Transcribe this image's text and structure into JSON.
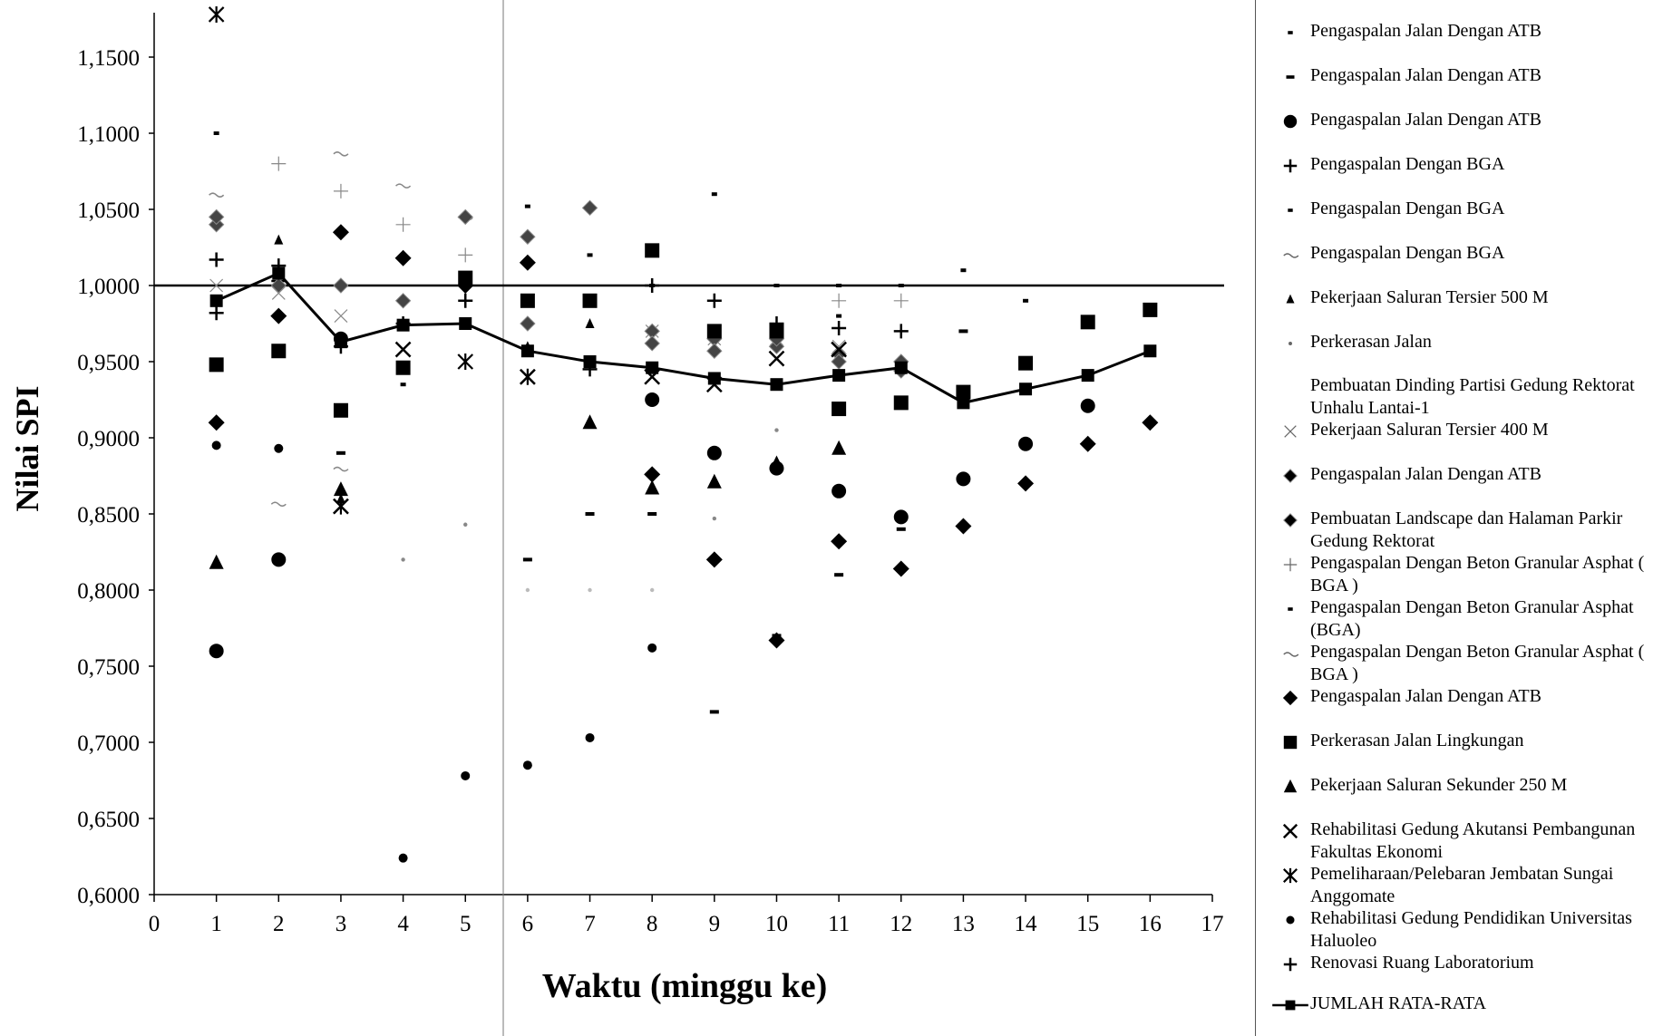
{
  "chart_data": {
    "type": "scatter",
    "title": "",
    "xlabel": "Waktu (minggu ke)",
    "ylabel": "Nilai SPI",
    "xlim": [
      0,
      17
    ],
    "ylim": [
      0.6,
      1.18
    ],
    "xticks": [
      "0",
      "1",
      "2",
      "3",
      "4",
      "5",
      "6",
      "7",
      "8",
      "9",
      "10",
      "11",
      "12",
      "13",
      "14",
      "15",
      "16",
      "17"
    ],
    "yticks": [
      "0,6000",
      "0,6500",
      "0,7000",
      "0,7500",
      "0,8000",
      "0,8500",
      "0,9000",
      "0,9500",
      "1,0000",
      "1,0500",
      "1,1000",
      "1,1500"
    ],
    "ytick_values": [
      0.6,
      0.65,
      0.7,
      0.75,
      0.8,
      0.85,
      0.9,
      0.95,
      1.0,
      1.05,
      1.1,
      1.15
    ],
    "reference_line": 1.0,
    "grid": false,
    "legend_position": "right",
    "series": [
      {
        "name": "Pengaspalan Jalan Dengan ATB",
        "marker": "dash-small",
        "color": "#000000",
        "points": [
          [
            1,
            1.1
          ],
          [
            2,
            1.0
          ],
          [
            7,
            1.02
          ],
          [
            9,
            1.06
          ],
          [
            10,
            1.0
          ],
          [
            11,
            1.0
          ],
          [
            12,
            1.0
          ],
          [
            13,
            1.01
          ],
          [
            14,
            0.99
          ]
        ]
      },
      {
        "name": "Pengaspalan Jalan Dengan ATB",
        "marker": "dash",
        "color": "#000000",
        "points": [
          [
            3,
            0.89
          ],
          [
            6,
            0.82
          ],
          [
            7,
            0.85
          ],
          [
            8,
            0.85
          ],
          [
            9,
            0.72
          ],
          [
            10,
            0.77
          ],
          [
            11,
            0.81
          ],
          [
            12,
            0.84
          ],
          [
            13,
            0.97
          ]
        ]
      },
      {
        "name": "Pengaspalan Jalan Dengan ATB",
        "marker": "circle",
        "color": "#000000",
        "points": [
          [
            1,
            0.76
          ],
          [
            2,
            0.82
          ],
          [
            3,
            0.965
          ],
          [
            8,
            0.925
          ],
          [
            9,
            0.89
          ],
          [
            10,
            0.88
          ],
          [
            11,
            0.865
          ],
          [
            12,
            0.848
          ],
          [
            13,
            0.873
          ],
          [
            14,
            0.896
          ],
          [
            15,
            0.921
          ]
        ]
      },
      {
        "name": "Pengaspalan Dengan BGA",
        "marker": "plus",
        "color": "#000000",
        "points": [
          [
            1,
            1.017
          ],
          [
            2,
            1.003
          ],
          [
            8,
            1.0
          ],
          [
            9,
            0.99
          ],
          [
            10,
            0.975
          ],
          [
            11,
            0.972
          ],
          [
            12,
            0.97
          ]
        ]
      },
      {
        "name": "Pengaspalan Dengan BGA",
        "marker": "dash-small",
        "color": "#000000",
        "points": [
          [
            6,
            1.052
          ],
          [
            8,
            1.0
          ]
        ]
      },
      {
        "name": "Pengaspalan Dengan BGA",
        "marker": "tilde",
        "color": "#888888",
        "points": [
          [
            3,
            1.087
          ],
          [
            4,
            1.066
          ],
          [
            5,
            1.045
          ]
        ]
      },
      {
        "name": "Pekerjaan Saluran Tersier 500 M",
        "marker": "triangle-small",
        "color": "#000000",
        "points": [
          [
            2,
            1.03
          ],
          [
            3,
            0.86
          ],
          [
            6,
            0.96
          ],
          [
            7,
            0.975
          ]
        ]
      },
      {
        "name": "Perkerasan Jalan",
        "marker": "dot",
        "color": "#888888",
        "points": [
          [
            4,
            0.82
          ],
          [
            5,
            0.843
          ],
          [
            9,
            0.847
          ],
          [
            10,
            0.905
          ]
        ]
      },
      {
        "name": "Pembuatan Dinding Partisi Gedung Rektorat Unhalu Lantai-1",
        "marker": "dot",
        "color": "#bbbbbb",
        "points": [
          [
            6,
            0.8
          ],
          [
            7,
            0.8
          ],
          [
            8,
            0.8
          ]
        ]
      },
      {
        "name": "Pekerjaan Saluran Tersier 400 M",
        "marker": "x-light",
        "color": "#888888",
        "points": [
          [
            1,
            1.0
          ],
          [
            2,
            0.995
          ],
          [
            3,
            0.98
          ],
          [
            8,
            0.97
          ],
          [
            9,
            0.965
          ],
          [
            10,
            0.965
          ],
          [
            11,
            0.96
          ]
        ]
      },
      {
        "name": "Pengaspalan Jalan Dengan ATB",
        "marker": "diamond-hatch",
        "color": "#444444",
        "points": [
          [
            1,
            1.04
          ],
          [
            2,
            1.0
          ],
          [
            3,
            1.0
          ],
          [
            4,
            0.99
          ],
          [
            5,
            1.0
          ],
          [
            6,
            1.032
          ],
          [
            7,
            1.051
          ],
          [
            8,
            0.97
          ],
          [
            9,
            0.965
          ],
          [
            10,
            0.96
          ],
          [
            11,
            0.955
          ],
          [
            12,
            0.95
          ]
        ]
      },
      {
        "name": "Pembuatan Landscape dan Halaman Parkir Gedung Rektorat",
        "marker": "diamond-hatch",
        "color": "#444444",
        "points": [
          [
            1,
            1.045
          ],
          [
            5,
            1.045
          ],
          [
            6,
            0.975
          ],
          [
            8,
            0.962
          ],
          [
            9,
            0.957
          ],
          [
            10,
            0.965
          ],
          [
            11,
            0.95
          ],
          [
            12,
            0.944
          ]
        ]
      },
      {
        "name": "Pengaspalan Dengan Beton Granular Asphat ( BGA )",
        "marker": "plus-light",
        "color": "#888888",
        "points": [
          [
            2,
            1.08
          ],
          [
            3,
            1.062
          ],
          [
            4,
            1.04
          ],
          [
            5,
            1.02
          ],
          [
            11,
            0.99
          ],
          [
            12,
            0.99
          ]
        ]
      },
      {
        "name": "Pengaspalan Dengan Beton Granular Asphat (BGA)",
        "marker": "dash-small",
        "color": "#000000",
        "points": [
          [
            4,
            0.935
          ],
          [
            11,
            0.98
          ]
        ]
      },
      {
        "name": "Pengaspalan Dengan Beton Granular Asphat ( BGA )",
        "marker": "tilde",
        "color": "#888888",
        "points": [
          [
            2,
            0.857
          ],
          [
            3,
            0.88
          ],
          [
            1,
            1.06
          ]
        ]
      },
      {
        "name": "Pengaspalan Jalan Dengan ATB",
        "marker": "diamond",
        "color": "#000000",
        "points": [
          [
            1,
            0.91
          ],
          [
            2,
            0.98
          ],
          [
            3,
            1.035
          ],
          [
            4,
            1.018
          ],
          [
            5,
            1.0
          ],
          [
            6,
            1.015
          ],
          [
            8,
            0.876
          ],
          [
            9,
            0.82
          ],
          [
            10,
            0.767
          ],
          [
            11,
            0.832
          ],
          [
            12,
            0.814
          ],
          [
            13,
            0.842
          ],
          [
            14,
            0.87
          ],
          [
            15,
            0.896
          ],
          [
            16,
            0.91
          ]
        ]
      },
      {
        "name": "Perkerasan Jalan Lingkungan",
        "marker": "square",
        "color": "#000000",
        "points": [
          [
            1,
            0.948
          ],
          [
            2,
            0.957
          ],
          [
            3,
            0.918
          ],
          [
            4,
            0.946
          ],
          [
            5,
            1.005
          ],
          [
            6,
            0.99
          ],
          [
            7,
            0.99
          ],
          [
            8,
            1.023
          ],
          [
            9,
            0.97
          ],
          [
            10,
            0.97
          ],
          [
            11,
            0.919
          ],
          [
            12,
            0.923
          ],
          [
            13,
            0.93
          ],
          [
            14,
            0.949
          ],
          [
            15,
            0.976
          ],
          [
            16,
            0.984
          ]
        ]
      },
      {
        "name": "Pekerjaan Saluran Sekunder 250 M",
        "marker": "triangle",
        "color": "#000000",
        "points": [
          [
            1,
            0.818
          ],
          [
            3,
            0.866
          ],
          [
            7,
            0.91
          ],
          [
            8,
            0.867
          ],
          [
            9,
            0.871
          ],
          [
            10,
            0.883
          ],
          [
            11,
            0.893
          ]
        ]
      },
      {
        "name": "Rehabilitasi Gedung Akutansi Pembangunan Fakultas Ekonomi",
        "marker": "x",
        "color": "#000000",
        "points": [
          [
            3,
            0.855
          ],
          [
            4,
            0.958
          ],
          [
            6,
            0.94
          ],
          [
            8,
            0.94
          ],
          [
            9,
            0.935
          ],
          [
            10,
            0.952
          ],
          [
            11,
            0.958
          ]
        ]
      },
      {
        "name": "Pemeliharaan/Pelebaran Jembatan Sungai Anggomate",
        "marker": "asterisk",
        "color": "#000000",
        "points": [
          [
            1,
            1.18
          ],
          [
            3,
            0.855
          ],
          [
            5,
            0.95
          ],
          [
            6,
            0.94
          ]
        ]
      },
      {
        "name": "Rehabilitasi Gedung Pendidikan Universitas Haluoleo",
        "marker": "dot-black",
        "color": "#000000",
        "points": [
          [
            1,
            0.895
          ],
          [
            2,
            0.893
          ],
          [
            4,
            0.624
          ],
          [
            5,
            0.678
          ],
          [
            6,
            0.685
          ],
          [
            7,
            0.703
          ],
          [
            8,
            0.762
          ]
        ]
      },
      {
        "name": "Renovasi Ruang Laboratorium",
        "marker": "plus",
        "color": "#000000",
        "points": [
          [
            1,
            0.982
          ],
          [
            2,
            1.013
          ],
          [
            3,
            0.96
          ],
          [
            4,
            0.975
          ],
          [
            5,
            0.99
          ],
          [
            7,
            0.945
          ]
        ]
      },
      {
        "name": "JUMLAH RATA-RATA",
        "marker": "line",
        "color": "#000000",
        "points": [
          [
            1,
            0.99
          ],
          [
            2,
            1.008
          ],
          [
            3,
            0.963
          ],
          [
            4,
            0.974
          ],
          [
            5,
            0.975
          ],
          [
            6,
            0.957
          ],
          [
            7,
            0.95
          ],
          [
            8,
            0.946
          ],
          [
            9,
            0.939
          ],
          [
            10,
            0.935
          ],
          [
            11,
            0.941
          ],
          [
            12,
            0.946
          ],
          [
            13,
            0.923
          ],
          [
            14,
            0.932
          ],
          [
            15,
            0.941
          ],
          [
            16,
            0.957
          ]
        ]
      }
    ]
  },
  "legend": [
    {
      "label": "Pengaspalan Jalan Dengan ATB",
      "marker": "dash-small"
    },
    {
      "label": "Pengaspalan Jalan Dengan ATB",
      "marker": "dash"
    },
    {
      "label": "Pengaspalan Jalan Dengan ATB",
      "marker": "circle"
    },
    {
      "label": "Pengaspalan Dengan BGA",
      "marker": "plus"
    },
    {
      "label": "Pengaspalan Dengan BGA",
      "marker": "dash-small"
    },
    {
      "label": "Pengaspalan Dengan BGA",
      "marker": "tilde"
    },
    {
      "label": "Pekerjaan Saluran Tersier 500 M",
      "marker": "triangle-small"
    },
    {
      "label": "Perkerasan Jalan",
      "marker": "dot"
    },
    {
      "label": "Pembuatan Dinding Partisi Gedung Rektorat Unhalu Lantai-1",
      "marker": "none"
    },
    {
      "label": "Pekerjaan Saluran Tersier 400 M",
      "marker": "x-light"
    },
    {
      "label": "Pengaspalan Jalan Dengan ATB",
      "marker": "diamond-hatch"
    },
    {
      "label": "Pembuatan Landscape dan Halaman Parkir Gedung Rektorat",
      "marker": "diamond-hatch"
    },
    {
      "label": "Pengaspalan Dengan Beton Granular Asphat ( BGA )",
      "marker": "plus-light"
    },
    {
      "label": "Pengaspalan Dengan Beton Granular Asphat (BGA)",
      "marker": "dash-small"
    },
    {
      "label": "Pengaspalan Dengan Beton Granular Asphat ( BGA )",
      "marker": "tilde"
    },
    {
      "label": "Pengaspalan Jalan Dengan ATB",
      "marker": "diamond"
    },
    {
      "label": "Perkerasan Jalan Lingkungan",
      "marker": "square"
    },
    {
      "label": "Pekerjaan Saluran Sekunder 250 M",
      "marker": "triangle"
    },
    {
      "label": "Rehabilitasi Gedung Akutansi Pembangunan Fakultas Ekonomi",
      "marker": "x"
    },
    {
      "label": "Pemeliharaan/Pelebaran Jembatan Sungai Anggomate",
      "marker": "asterisk"
    },
    {
      "label": "Rehabilitasi Gedung Pendidikan Universitas Haluoleo",
      "marker": "dot-black"
    },
    {
      "label": "Renovasi Ruang Laboratorium",
      "marker": "plus"
    },
    {
      "label": "JUMLAH RATA-RATA",
      "marker": "line"
    }
  ]
}
